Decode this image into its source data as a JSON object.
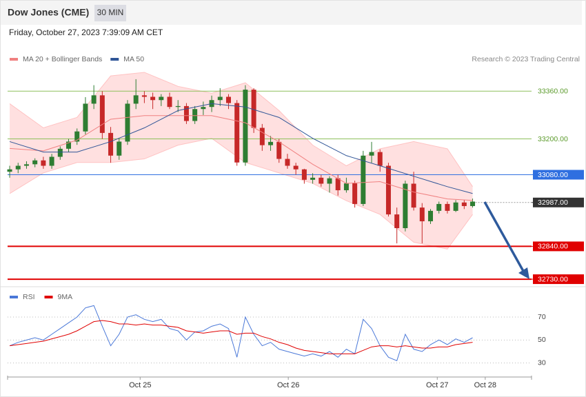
{
  "chart_data": [
    {
      "type": "candlestick",
      "title": "Dow Jones (CME)",
      "interval": "30 MIN",
      "subtitle": "Friday, October 27, 2023 7:39:09 AM CET",
      "credit": "Research © 2023 Trading Central",
      "candles": [
        [
          33090,
          33110,
          33070,
          33098
        ],
        [
          33098,
          33120,
          33085,
          33110
        ],
        [
          33110,
          33125,
          33100,
          33115
        ],
        [
          33115,
          33135,
          33105,
          33128
        ],
        [
          33128,
          33140,
          33100,
          33110
        ],
        [
          33110,
          33150,
          33100,
          33140
        ],
        [
          33140,
          33175,
          33130,
          33167
        ],
        [
          33167,
          33200,
          33155,
          33191
        ],
        [
          33191,
          33235,
          33180,
          33225
        ],
        [
          33225,
          33340,
          33215,
          33318
        ],
        [
          33318,
          33380,
          33300,
          33346
        ],
        [
          33346,
          33360,
          33200,
          33220
        ],
        [
          33220,
          33240,
          33120,
          33144
        ],
        [
          33144,
          33200,
          33130,
          33191
        ],
        [
          33191,
          33330,
          33180,
          33318
        ],
        [
          33318,
          33400,
          33300,
          33346
        ],
        [
          33346,
          33360,
          33320,
          33341
        ],
        [
          33341,
          33355,
          33300,
          33330
        ],
        [
          33330,
          33350,
          33310,
          33341
        ],
        [
          33341,
          33355,
          33300,
          33307
        ],
        [
          33307,
          33330,
          33290,
          33310
        ],
        [
          33310,
          33320,
          33250,
          33260
        ],
        [
          33260,
          33310,
          33250,
          33300
        ],
        [
          33300,
          33325,
          33280,
          33307
        ],
        [
          33307,
          33345,
          33290,
          33330
        ],
        [
          33330,
          33370,
          33310,
          33341
        ],
        [
          33341,
          33350,
          33300,
          33320
        ],
        [
          33320,
          33330,
          33110,
          33121
        ],
        [
          33121,
          33380,
          33110,
          33365
        ],
        [
          33365,
          33370,
          33220,
          33237
        ],
        [
          33237,
          33250,
          33160,
          33179
        ],
        [
          33179,
          33210,
          33160,
          33190
        ],
        [
          33190,
          33200,
          33120,
          33133
        ],
        [
          33133,
          33150,
          33100,
          33110
        ],
        [
          33110,
          33120,
          33080,
          33098
        ],
        [
          33098,
          33100,
          33050,
          33063
        ],
        [
          33063,
          33085,
          33050,
          33070
        ],
        [
          33070,
          33080,
          33040,
          33050
        ],
        [
          33050,
          33075,
          33020,
          33068
        ],
        [
          33068,
          33080,
          33010,
          33028
        ],
        [
          33028,
          33070,
          33020,
          33051
        ],
        [
          33051,
          33060,
          32970,
          32982
        ],
        [
          32982,
          33160,
          32975,
          33144
        ],
        [
          33144,
          33190,
          33120,
          33156
        ],
        [
          33156,
          33165,
          33090,
          33110
        ],
        [
          33110,
          33120,
          32940,
          32947
        ],
        [
          32947,
          32970,
          32850,
          32901
        ],
        [
          32901,
          33060,
          32890,
          33050
        ],
        [
          33050,
          33090,
          32960,
          32970
        ],
        [
          32970,
          32985,
          32850,
          32924
        ],
        [
          32924,
          32965,
          32915,
          32959
        ],
        [
          32959,
          32990,
          32950,
          32982
        ],
        [
          32982,
          32990,
          32950,
          32959
        ],
        [
          32959,
          32995,
          32955,
          32987
        ],
        [
          32987,
          32995,
          32965,
          32975
        ],
        [
          32975,
          33000,
          32970,
          32990
        ]
      ],
      "up_color": "#2e7d32",
      "down_color": "#c62828",
      "series": [
        {
          "name": "MA 20 + Bollinger Bands",
          "color": "#f08080",
          "x": [
            0,
            4,
            8,
            12,
            16,
            20,
            24,
            28,
            32,
            36,
            40,
            44,
            48,
            52,
            55
          ],
          "values": [
            33168,
            33160,
            33196,
            33266,
            33278,
            33278,
            33278,
            33254,
            33190,
            33115,
            33051,
            33057,
            33022,
            32999,
            32994
          ]
        },
        {
          "name": "MA 50",
          "color": "#2f5597",
          "x": [
            0,
            4,
            8,
            12,
            16,
            20,
            24,
            28,
            32,
            36,
            40,
            44,
            48,
            52,
            55
          ],
          "values": [
            33191,
            33156,
            33156,
            33191,
            33237,
            33295,
            33318,
            33307,
            33272,
            33202,
            33144,
            33110,
            33075,
            33040,
            33017
          ]
        }
      ],
      "bands": {
        "color": "#ffd6d6",
        "x": [
          0,
          4,
          8,
          12,
          16,
          20,
          24,
          28,
          32,
          36,
          40,
          44,
          48,
          52,
          55
        ],
        "upper": [
          33318,
          33237,
          33272,
          33411,
          33423,
          33376,
          33353,
          33388,
          33295,
          33179,
          33110,
          33167,
          33191,
          33167,
          33040
        ],
        "lower": [
          33017,
          33086,
          33121,
          33121,
          33133,
          33179,
          33202,
          33121,
          33086,
          33051,
          32993,
          32947,
          32854,
          32831,
          32947
        ]
      },
      "levels": [
        {
          "value": 33360,
          "label": "33360.00",
          "color": "#8dbf5a",
          "badge": false
        },
        {
          "value": 33200,
          "label": "33200.00",
          "color": "#8dbf5a",
          "badge": false
        },
        {
          "value": 33080,
          "label": "33080.00",
          "color": "#2f6fe0",
          "badge": true
        },
        {
          "value": 32987,
          "label": "32987.00",
          "color": "#333333",
          "badge": true,
          "dashed": true
        },
        {
          "value": 32840,
          "label": "32840.00",
          "color": "#e00000",
          "badge": true
        },
        {
          "value": 32730,
          "label": "32730.00",
          "color": "#e00000",
          "badge": true
        }
      ],
      "ylim": [
        32714,
        33446
      ],
      "xlim": [
        -0.25,
        62
      ],
      "xticks": [
        {
          "value": 15.5,
          "label": "Oct 25"
        },
        {
          "value": 33.1,
          "label": "Oct 26"
        },
        {
          "value": 50.8,
          "label": "Oct 27"
        },
        {
          "value": 56.5,
          "label": "Oct 28"
        }
      ]
    },
    {
      "type": "line",
      "series": [
        {
          "name": "RSI",
          "color": "#4a78d8",
          "values": [
            45,
            48,
            50,
            52,
            50,
            55,
            60,
            65,
            70,
            78,
            80,
            62,
            45,
            55,
            70,
            72,
            68,
            66,
            68,
            60,
            58,
            50,
            57,
            58,
            62,
            64,
            60,
            35,
            70,
            55,
            45,
            48,
            42,
            40,
            38,
            36,
            38,
            36,
            40,
            35,
            42,
            38,
            68,
            60,
            45,
            35,
            32,
            55,
            42,
            40,
            46,
            50,
            46,
            51,
            48,
            52
          ]
        },
        {
          "name": "9MA",
          "color": "#e00000",
          "values": [
            45,
            46,
            47,
            48,
            49,
            51,
            53,
            55,
            58,
            62,
            66,
            67,
            66,
            64,
            64,
            63,
            64,
            63,
            63,
            62,
            61,
            58,
            57,
            56,
            57,
            58,
            58,
            55,
            56,
            56,
            53,
            51,
            48,
            46,
            43,
            41,
            40,
            39,
            38,
            38,
            38,
            38,
            41,
            44,
            45,
            45,
            44,
            45,
            44,
            43,
            43,
            44,
            44,
            46,
            47,
            48
          ]
        }
      ],
      "ylim": [
        22,
        82
      ],
      "yticks": [
        30,
        50,
        70
      ],
      "grid": true
    }
  ]
}
